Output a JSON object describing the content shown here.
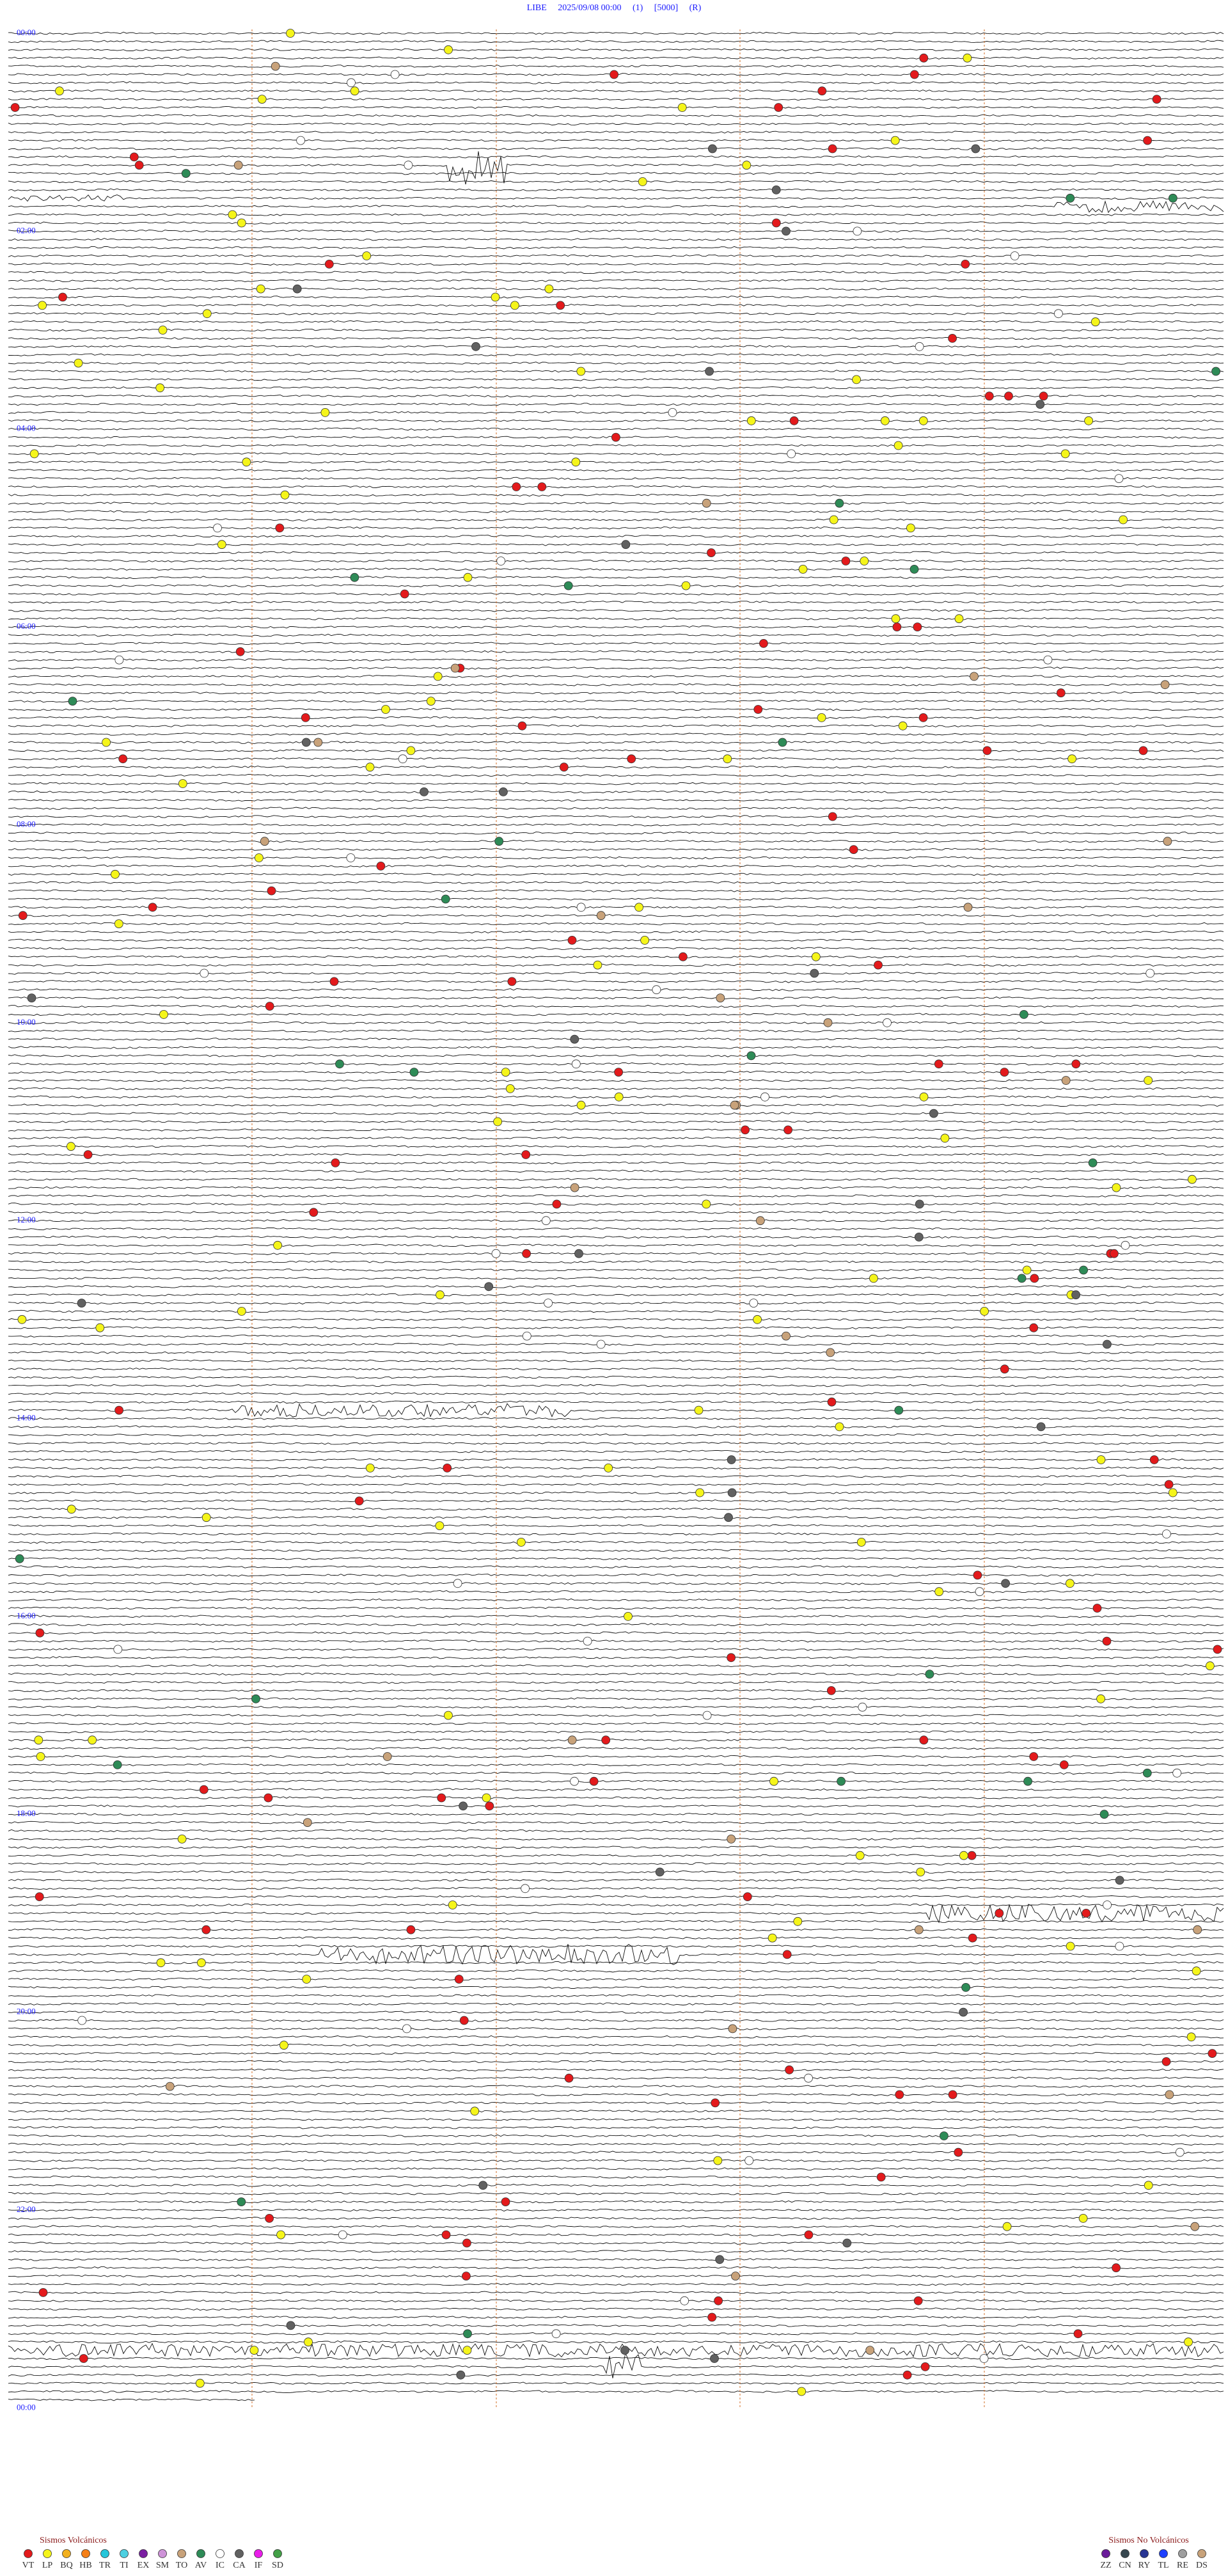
{
  "header": {
    "title": "LIBE     2025/09/08 00:00     (1)     [5000]     (R)"
  },
  "hour_labels": [
    "00:00",
    "02:00",
    "04:00",
    "06:00",
    "08:00",
    "10:00",
    "12:00",
    "14:00",
    "16:00",
    "18:00",
    "20:00",
    "22:00",
    "00:00"
  ],
  "legend": {
    "volcanic": {
      "title": "Sismos Volcánicos",
      "types": [
        {
          "code": "VT",
          "color": "#e31a1c"
        },
        {
          "code": "LP",
          "color": "#f5f51a"
        },
        {
          "code": "BQ",
          "color": "#f2b01e"
        },
        {
          "code": "HB",
          "color": "#f57f17"
        },
        {
          "code": "TR",
          "color": "#26c6da"
        },
        {
          "code": "TI",
          "color": "#4dd0e1"
        },
        {
          "code": "EX",
          "color": "#7b1fa2"
        },
        {
          "code": "SM",
          "color": "#ce93d8"
        },
        {
          "code": "TO",
          "color": "#c8a27a"
        },
        {
          "code": "AV",
          "color": "#2e8b57"
        },
        {
          "code": "IC",
          "color": "#ffffff"
        },
        {
          "code": "CA",
          "color": "#616161"
        },
        {
          "code": "IF",
          "color": "#e91ee9"
        },
        {
          "code": "SD",
          "color": "#43a047"
        }
      ]
    },
    "non_volcanic": {
      "title": "Sismos No Volcánicos",
      "types": [
        {
          "code": "ZZ",
          "color": "#6a1b9a"
        },
        {
          "code": "CN",
          "color": "#37474f"
        },
        {
          "code": "RY",
          "color": "#283593"
        },
        {
          "code": "TL",
          "color": "#1e40ff"
        },
        {
          "code": "RE",
          "color": "#9e9e9e"
        },
        {
          "code": "DS",
          "color": "#c8a27a"
        }
      ]
    }
  }
}
